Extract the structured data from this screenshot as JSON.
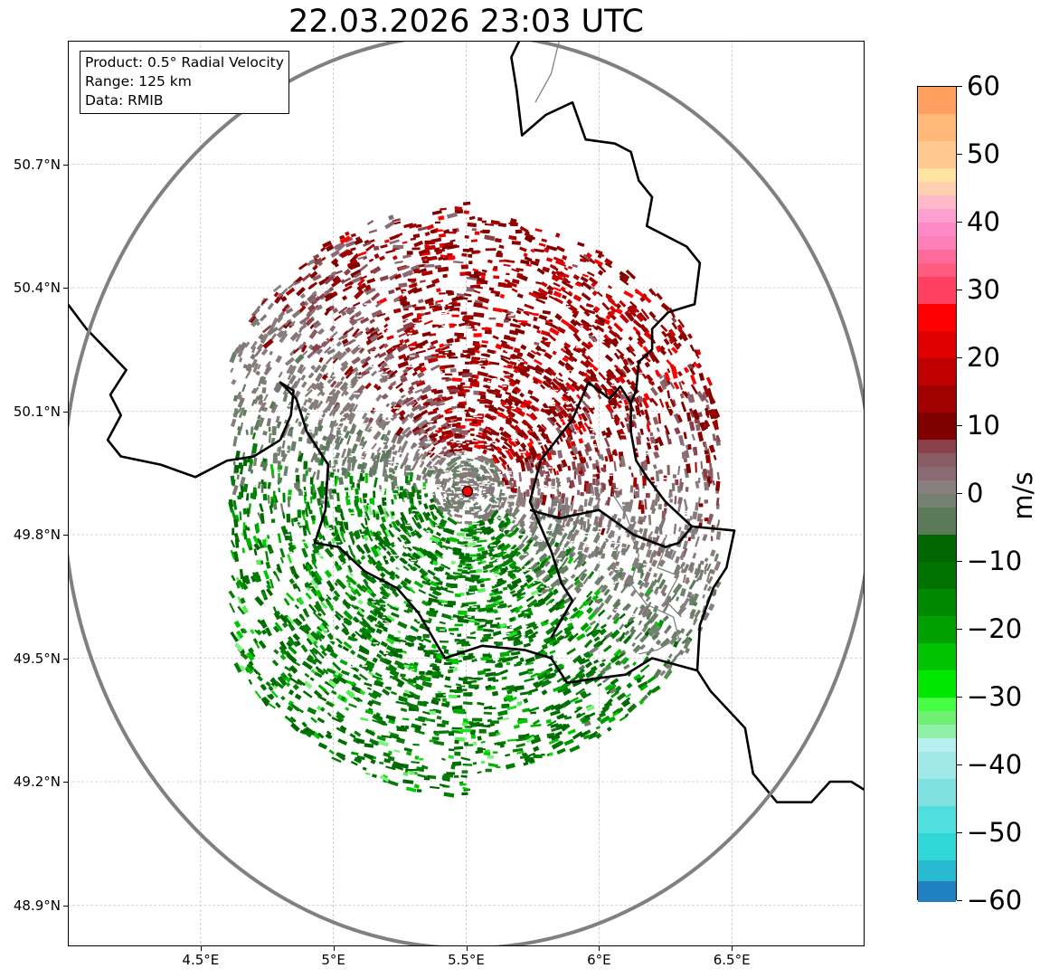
{
  "title": "22.03.2026 23:03 UTC",
  "info": {
    "product": "Product: 0.5° Radial Velocity",
    "range": "Range: 125 km",
    "data": "Data: RMIB"
  },
  "map": {
    "lon_range": [
      4.0,
      7.0
    ],
    "lat_range": [
      48.8,
      51.0
    ],
    "radar_site": {
      "lon": 5.505,
      "lat": 49.914
    },
    "radar_site_color": "#ff0000",
    "range_ring_color": "#808080",
    "lat_ticks": [
      {
        "value": 50.7,
        "label": "50.7°N"
      },
      {
        "value": 50.4,
        "label": "50.4°N"
      },
      {
        "value": 50.1,
        "label": "50.1°N"
      },
      {
        "value": 49.8,
        "label": "49.8°N"
      },
      {
        "value": 49.5,
        "label": "49.5°N"
      },
      {
        "value": 49.2,
        "label": "49.2°N"
      },
      {
        "value": 48.9,
        "label": "48.9°N"
      }
    ],
    "lon_ticks": [
      {
        "value": 4.5,
        "label": "4.5°E"
      },
      {
        "value": 5.0,
        "label": "5°E"
      },
      {
        "value": 5.5,
        "label": "5.5°E"
      },
      {
        "value": 6.0,
        "label": "6°E"
      },
      {
        "value": 6.5,
        "label": "6.5°E"
      }
    ],
    "borders": [
      [
        [
          4.0,
          50.36
        ],
        [
          4.07,
          50.3
        ],
        [
          4.13,
          50.26
        ],
        [
          4.22,
          50.2
        ],
        [
          4.16,
          50.14
        ],
        [
          4.2,
          50.09
        ],
        [
          4.15,
          50.03
        ],
        [
          4.2,
          49.99
        ],
        [
          4.35,
          49.97
        ],
        [
          4.48,
          49.94
        ],
        [
          4.6,
          49.98
        ],
        [
          4.7,
          49.99
        ],
        [
          4.8,
          50.03
        ]
      ],
      [
        [
          4.8,
          50.03
        ],
        [
          4.84,
          50.09
        ],
        [
          4.85,
          50.15
        ],
        [
          4.8,
          50.17
        ],
        [
          4.86,
          50.13
        ],
        [
          4.9,
          50.05
        ],
        [
          4.98,
          49.97
        ],
        [
          4.97,
          49.86
        ],
        [
          4.93,
          49.78
        ],
        [
          5.02,
          49.77
        ],
        [
          5.12,
          49.71
        ],
        [
          5.24,
          49.67
        ],
        [
          5.32,
          49.61
        ],
        [
          5.42,
          49.5
        ],
        [
          5.56,
          49.53
        ],
        [
          5.72,
          49.52
        ],
        [
          5.82,
          49.5
        ],
        [
          5.88,
          49.44
        ],
        [
          5.98,
          49.45
        ],
        [
          6.1,
          49.46
        ],
        [
          6.2,
          49.5
        ],
        [
          6.37,
          49.47
        ],
        [
          6.42,
          49.42
        ],
        [
          6.55,
          49.33
        ],
        [
          6.58,
          49.22
        ],
        [
          6.67,
          49.15
        ],
        [
          6.8,
          49.15
        ],
        [
          6.87,
          49.2
        ],
        [
          6.95,
          49.2
        ],
        [
          7.0,
          49.18
        ]
      ],
      [
        [
          6.04,
          50.13
        ],
        [
          5.96,
          50.17
        ],
        [
          5.9,
          50.08
        ],
        [
          5.78,
          49.98
        ],
        [
          5.74,
          49.88
        ],
        [
          5.82,
          49.76
        ],
        [
          5.86,
          49.68
        ],
        [
          5.9,
          49.64
        ],
        [
          5.82,
          49.55
        ]
      ],
      [
        [
          5.74,
          49.86
        ],
        [
          5.85,
          49.84
        ],
        [
          6.0,
          49.86
        ],
        [
          6.13,
          49.8
        ],
        [
          6.25,
          49.77
        ],
        [
          6.3,
          49.78
        ],
        [
          6.35,
          49.82
        ],
        [
          6.51,
          49.81
        ],
        [
          6.48,
          49.72
        ],
        [
          6.43,
          49.67
        ],
        [
          6.38,
          49.58
        ],
        [
          6.37,
          49.47
        ]
      ],
      [
        [
          5.96,
          50.17
        ],
        [
          6.04,
          50.13
        ],
        [
          6.08,
          50.16
        ],
        [
          6.12,
          50.12
        ],
        [
          6.12,
          50.05
        ],
        [
          6.14,
          49.98
        ],
        [
          6.18,
          49.94
        ],
        [
          6.25,
          49.88
        ],
        [
          6.35,
          49.82
        ]
      ],
      [
        [
          6.12,
          50.12
        ],
        [
          6.14,
          50.15
        ],
        [
          6.15,
          50.22
        ],
        [
          6.2,
          50.25
        ],
        [
          6.2,
          50.3
        ],
        [
          6.26,
          50.34
        ],
        [
          6.36,
          50.36
        ],
        [
          6.38,
          50.46
        ],
        [
          6.33,
          50.5
        ],
        [
          6.18,
          50.55
        ],
        [
          6.2,
          50.62
        ],
        [
          6.15,
          50.66
        ],
        [
          6.12,
          50.73
        ],
        [
          6.06,
          50.75
        ],
        [
          5.95,
          50.76
        ],
        [
          5.9,
          50.85
        ],
        [
          5.8,
          50.82
        ],
        [
          5.71,
          50.77
        ],
        [
          5.69,
          50.88
        ],
        [
          5.67,
          50.96
        ],
        [
          5.7,
          51.0
        ]
      ],
      [
        [
          5.0,
          51.0
        ]
      ]
    ],
    "internal_borders": [
      [
        [
          6.12,
          49.8
        ],
        [
          6.15,
          49.75
        ],
        [
          6.12,
          49.68
        ],
        [
          6.18,
          49.63
        ],
        [
          6.28,
          49.6
        ],
        [
          6.3,
          49.55
        ],
        [
          6.22,
          49.52
        ],
        [
          6.15,
          49.51
        ]
      ],
      [
        [
          6.25,
          49.77
        ],
        [
          6.22,
          49.72
        ],
        [
          6.3,
          49.7
        ],
        [
          6.25,
          49.64
        ],
        [
          6.31,
          49.6
        ]
      ],
      [
        [
          6.13,
          49.8
        ],
        [
          6.1,
          49.85
        ],
        [
          6.05,
          49.9
        ]
      ],
      [
        [
          5.76,
          50.85
        ],
        [
          5.82,
          50.92
        ],
        [
          5.85,
          51.0
        ]
      ]
    ]
  },
  "colorbar": {
    "unit": "m/s",
    "min": -60,
    "max": 60,
    "ticks": [
      {
        "value": 60,
        "label": "60"
      },
      {
        "value": 50,
        "label": "50"
      },
      {
        "value": 40,
        "label": "40"
      },
      {
        "value": 30,
        "label": "30"
      },
      {
        "value": 20,
        "label": "20"
      },
      {
        "value": 10,
        "label": "10"
      },
      {
        "value": 0,
        "label": "0"
      },
      {
        "value": -10,
        "label": "−10"
      },
      {
        "value": -20,
        "label": "−20"
      },
      {
        "value": -30,
        "label": "−30"
      },
      {
        "value": -40,
        "label": "−40"
      },
      {
        "value": -50,
        "label": "−50"
      },
      {
        "value": -60,
        "label": "−60"
      }
    ],
    "bands": [
      {
        "from": 56,
        "to": 60,
        "color": "#ffa060"
      },
      {
        "from": 52,
        "to": 56,
        "color": "#ffb878"
      },
      {
        "from": 48,
        "to": 52,
        "color": "#ffc890"
      },
      {
        "from": 46,
        "to": 48,
        "color": "#ffe4a0"
      },
      {
        "from": 44,
        "to": 46,
        "color": "#ffd0b0"
      },
      {
        "from": 42,
        "to": 44,
        "color": "#ffb8c8"
      },
      {
        "from": 40,
        "to": 42,
        "color": "#ffa0d0"
      },
      {
        "from": 38,
        "to": 40,
        "color": "#ff88c8"
      },
      {
        "from": 36,
        "to": 38,
        "color": "#ff80b8"
      },
      {
        "from": 34,
        "to": 36,
        "color": "#ff6c9c"
      },
      {
        "from": 32,
        "to": 34,
        "color": "#ff5c80"
      },
      {
        "from": 28,
        "to": 32,
        "color": "#ff4060"
      },
      {
        "from": 24,
        "to": 28,
        "color": "#ff0000"
      },
      {
        "from": 20,
        "to": 24,
        "color": "#e00000"
      },
      {
        "from": 16,
        "to": 20,
        "color": "#c00000"
      },
      {
        "from": 12,
        "to": 16,
        "color": "#a00000"
      },
      {
        "from": 8,
        "to": 12,
        "color": "#800000"
      },
      {
        "from": 6,
        "to": 8,
        "color": "#8a4048"
      },
      {
        "from": 4,
        "to": 6,
        "color": "#8a5c64"
      },
      {
        "from": 2,
        "to": 4,
        "color": "#8a6a74"
      },
      {
        "from": 0,
        "to": 2,
        "color": "#888080"
      },
      {
        "from": -2,
        "to": 0,
        "color": "#748070"
      },
      {
        "from": -6,
        "to": -2,
        "color": "#5a7a5a"
      },
      {
        "from": -10,
        "to": -6,
        "color": "#006600"
      },
      {
        "from": -14,
        "to": -10,
        "color": "#007200"
      },
      {
        "from": -18,
        "to": -14,
        "color": "#008800"
      },
      {
        "from": -22,
        "to": -18,
        "color": "#00a000"
      },
      {
        "from": -26,
        "to": -22,
        "color": "#00c400"
      },
      {
        "from": -30,
        "to": -26,
        "color": "#00e800"
      },
      {
        "from": -32,
        "to": -30,
        "color": "#44ff44"
      },
      {
        "from": -34,
        "to": -32,
        "color": "#70f070"
      },
      {
        "from": -36,
        "to": -34,
        "color": "#90f0a8"
      },
      {
        "from": -38,
        "to": -36,
        "color": "#b8f0f0"
      },
      {
        "from": -42,
        "to": -38,
        "color": "#a0e8e8"
      },
      {
        "from": -46,
        "to": -42,
        "color": "#80e0e0"
      },
      {
        "from": -50,
        "to": -46,
        "color": "#50dede"
      },
      {
        "from": -54,
        "to": -50,
        "color": "#30d8d8"
      },
      {
        "from": -57,
        "to": -54,
        "color": "#28b8d0"
      },
      {
        "from": -60,
        "to": -57,
        "color": "#2080c0"
      }
    ]
  }
}
